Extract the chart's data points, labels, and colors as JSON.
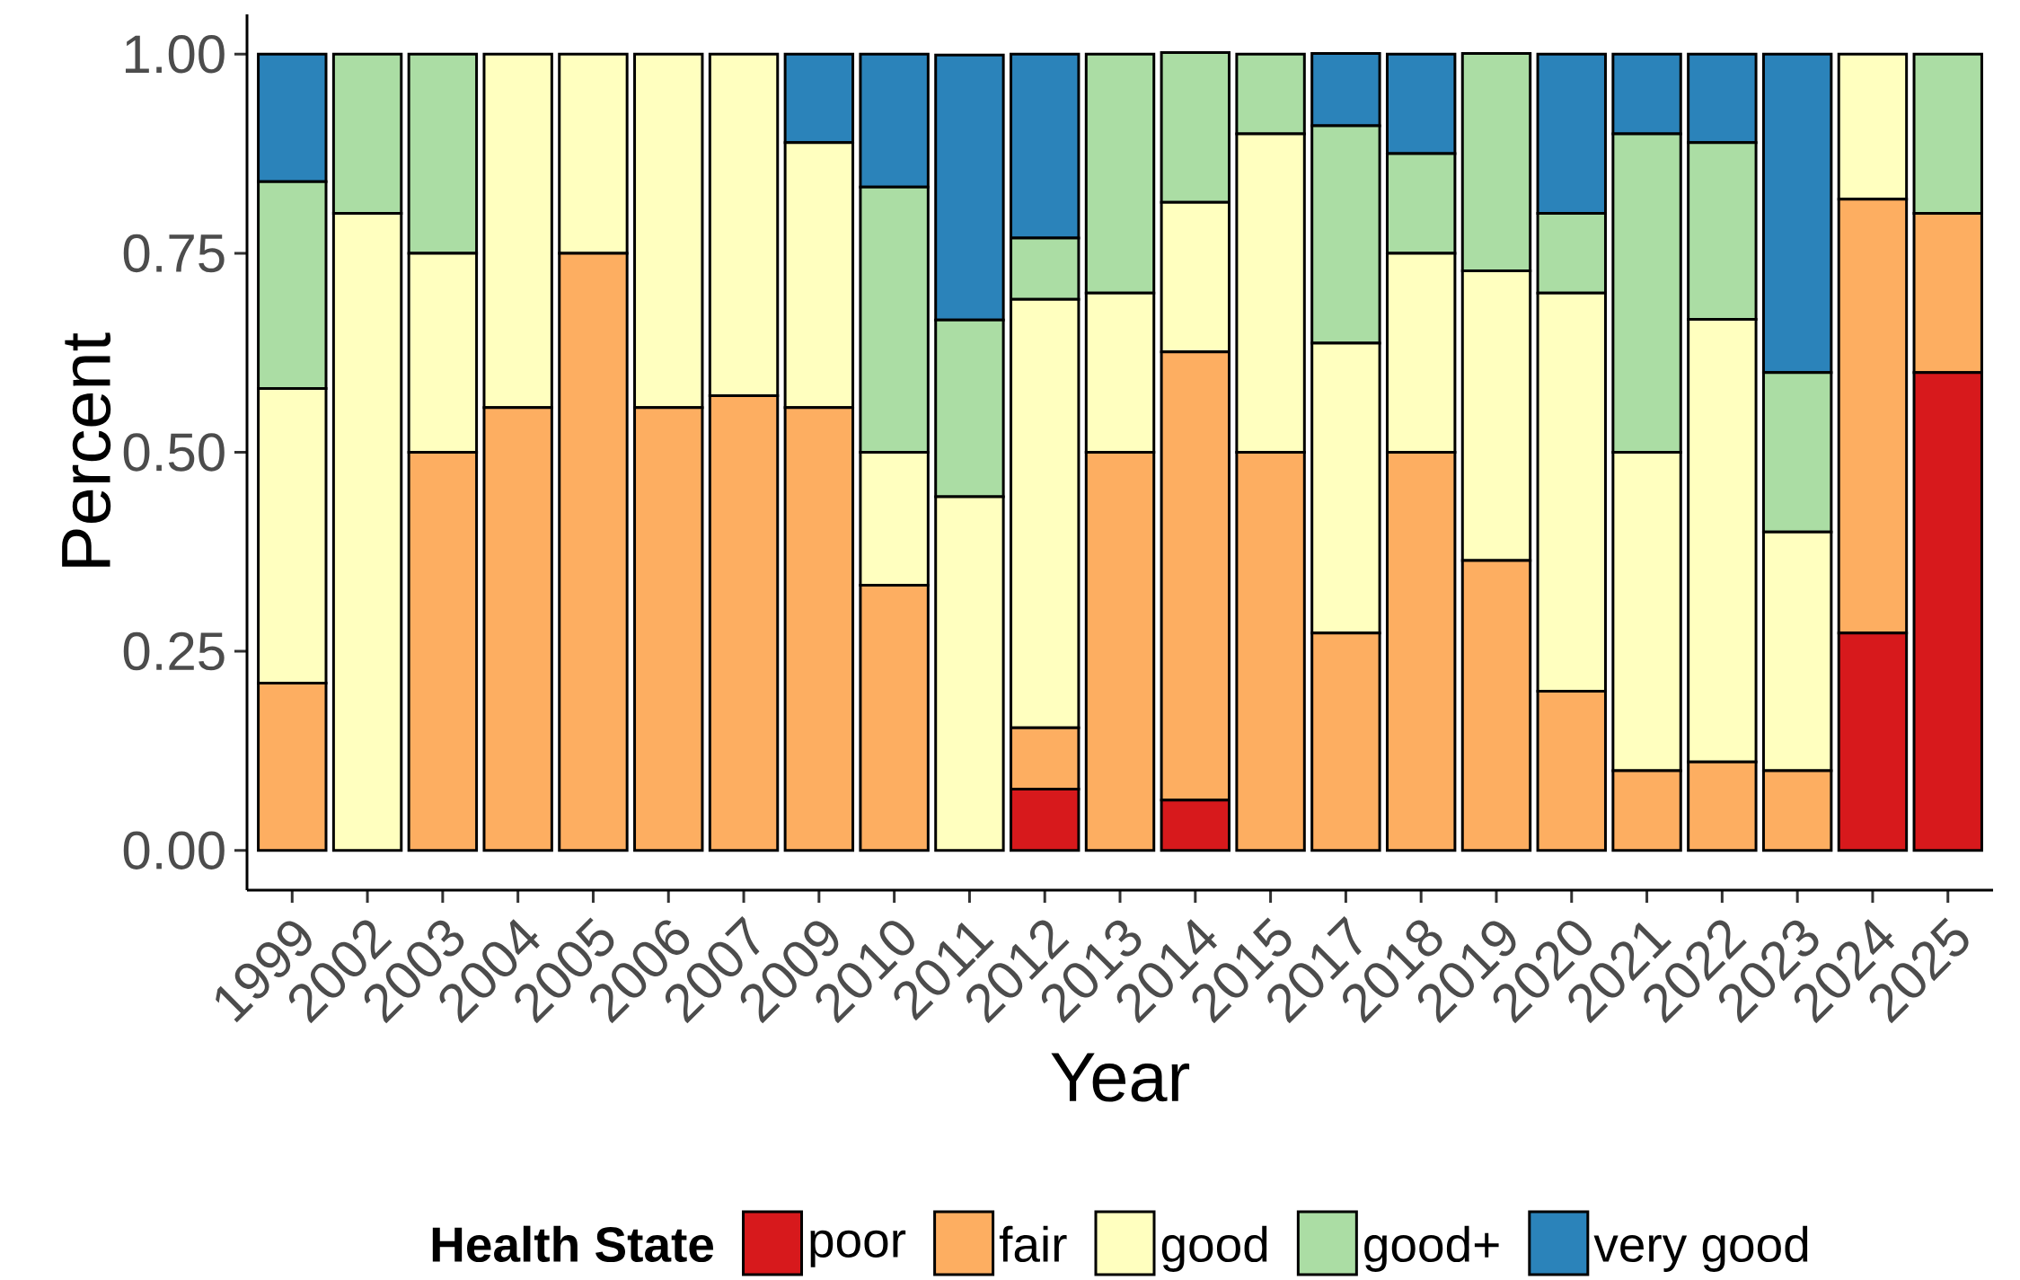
{
  "chart_data": {
    "type": "bar",
    "stacked": true,
    "xlabel": "Year",
    "ylabel": "Percent",
    "legend_title": "Health State",
    "legend": "bottom",
    "grid": false,
    "categories": [
      "1999",
      "2002",
      "2003",
      "2004",
      "2005",
      "2006",
      "2007",
      "2009",
      "2010",
      "2011",
      "2012",
      "2013",
      "2014",
      "2015",
      "2017",
      "2018",
      "2019",
      "2020",
      "2021",
      "2022",
      "2023",
      "2024",
      "2025"
    ],
    "ylim": [
      -0.05,
      1.05
    ],
    "yticks": [
      {
        "value": 0,
        "label": "0.00"
      },
      {
        "value": 0.25,
        "label": "0.25"
      },
      {
        "value": 0.5,
        "label": "0.50"
      },
      {
        "value": 0.75,
        "label": "0.75"
      },
      {
        "value": 1,
        "label": "1.00"
      }
    ],
    "series": [
      {
        "name": "poor",
        "color": "#d7191c",
        "values": [
          0,
          0,
          0,
          0,
          0,
          0,
          0,
          0,
          0,
          0,
          0.077,
          0,
          0.063,
          0,
          0,
          0,
          0,
          0,
          0,
          0,
          0,
          0.273,
          0.6
        ]
      },
      {
        "name": "fair",
        "color": "#fdae61",
        "values": [
          0.21,
          0,
          0.5,
          0.556,
          0.75,
          0.556,
          0.571,
          0.556,
          0.333,
          0,
          0.077,
          0.5,
          0.563,
          0.5,
          0.273,
          0.5,
          0.364,
          0.2,
          0.1,
          0.111,
          0.1,
          0.545,
          0.2
        ]
      },
      {
        "name": "good",
        "color": "#ffffbf",
        "values": [
          0.37,
          0.8,
          0.25,
          0.444,
          0.25,
          0.444,
          0.429,
          0.333,
          0.167,
          0.444,
          0.538,
          0.2,
          0.188,
          0.4,
          0.364,
          0.25,
          0.364,
          0.5,
          0.4,
          0.556,
          0.3,
          0.182,
          0
        ]
      },
      {
        "name": "good+",
        "color": "#abdda4",
        "values": [
          0.26,
          0.2,
          0.25,
          0,
          0,
          0,
          0,
          0,
          0.333,
          0.222,
          0.077,
          0.3,
          0.188,
          0.1,
          0.273,
          0.125,
          0.273,
          0.1,
          0.4,
          0.222,
          0.2,
          0,
          0.2
        ]
      },
      {
        "name": "very good",
        "color": "#2b83ba",
        "values": [
          0.16,
          0,
          0,
          0,
          0,
          0,
          0,
          0.111,
          0.167,
          0.333,
          0.231,
          0,
          0,
          0,
          0.091,
          0.125,
          0,
          0.2,
          0.1,
          0.111,
          0.4,
          0,
          0
        ]
      }
    ]
  }
}
